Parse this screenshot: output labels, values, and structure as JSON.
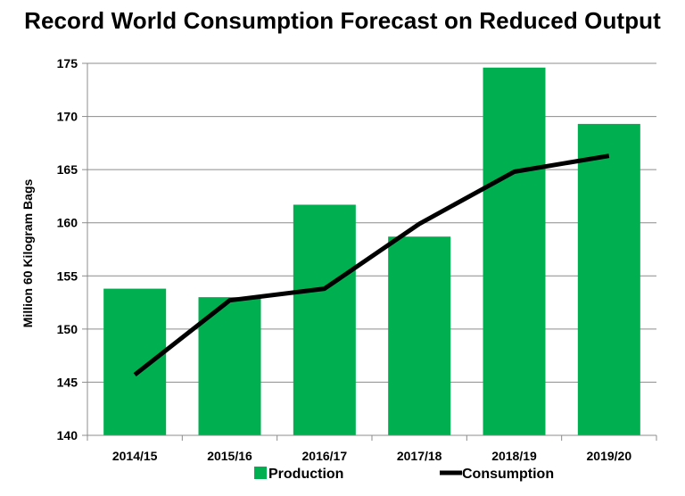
{
  "chart_data": {
    "type": "bar",
    "title": "Record World Consumption Forecast on Reduced Output",
    "xlabel": "",
    "ylabel": "Million 60 Kilogram Bags",
    "ylim": [
      140,
      175
    ],
    "yticks": [
      140,
      145,
      150,
      155,
      160,
      165,
      170,
      175
    ],
    "grid": true,
    "legend_position": "bottom",
    "categories": [
      "2014/15",
      "2015/16",
      "2016/17",
      "2017/18",
      "2018/19",
      "2019/20"
    ],
    "series": [
      {
        "name": "Production",
        "type": "bar",
        "color": "#00b050",
        "values": [
          153.8,
          153.0,
          161.7,
          158.7,
          174.6,
          169.3
        ]
      },
      {
        "name": "Consumption",
        "type": "line",
        "color": "#000000",
        "values": [
          145.7,
          152.7,
          153.8,
          159.9,
          164.8,
          166.3
        ]
      }
    ]
  }
}
